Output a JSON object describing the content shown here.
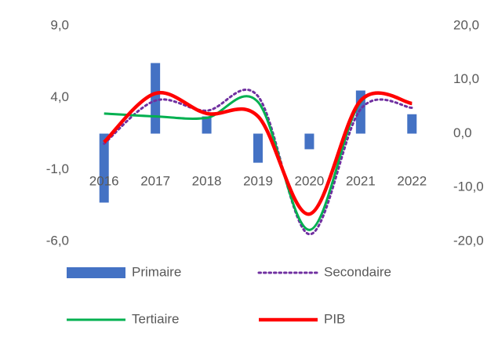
{
  "chart_data": {
    "type": "combo",
    "categories": [
      "2016",
      "2017",
      "2018",
      "2019",
      "2020",
      "2021",
      "2022"
    ],
    "ylim": [
      -6,
      9
    ],
    "yticks": [
      {
        "value": 9,
        "label": "9,0"
      },
      {
        "value": 4,
        "label": "4,0"
      },
      {
        "value": -1,
        "label": "-1,0"
      },
      {
        "value": -6,
        "label": "-6,0"
      }
    ],
    "y2lim": [
      -20,
      20
    ],
    "y2ticks": [
      {
        "value": 20,
        "label": "20,0"
      },
      {
        "value": 10,
        "label": "10,0"
      },
      {
        "value": 0,
        "label": "0,0"
      },
      {
        "value": -10,
        "label": "-10,0"
      },
      {
        "value": -20,
        "label": "-20,0"
      }
    ],
    "grid": false,
    "series": [
      {
        "name": "Primaire",
        "type": "bar",
        "axis": "y2",
        "color": "#4472c4",
        "values": [
          -12.8,
          13.1,
          3.2,
          -5.4,
          -2.9,
          8.0,
          3.6
        ]
      },
      {
        "name": "Secondaire",
        "type": "line",
        "style": "dotted",
        "color": "#7030a0",
        "values": [
          0.8,
          3.8,
          3.1,
          4.1,
          -5.5,
          3.2,
          3.3
        ]
      },
      {
        "name": "Tertiaire",
        "type": "line",
        "color": "#00b050",
        "values": [
          2.9,
          2.7,
          2.6,
          3.7,
          -5.2,
          3.7,
          3.6
        ]
      },
      {
        "name": "PIB",
        "type": "line",
        "color": "#ff0000",
        "values": [
          0.9,
          4.3,
          2.9,
          2.7,
          -4.1,
          3.8,
          3.6
        ]
      }
    ]
  }
}
